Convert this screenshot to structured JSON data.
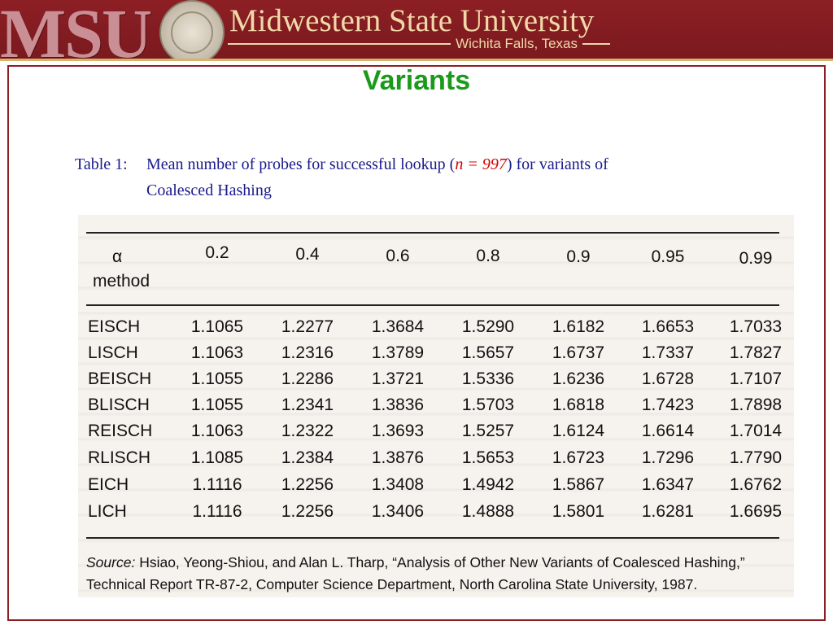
{
  "header": {
    "logo_text": "MSU",
    "university": "Midwestern State University",
    "location": "Wichita Falls, Texas"
  },
  "slide": {
    "title": "Variants"
  },
  "caption": {
    "lead": "Table 1:",
    "text_before": "Mean number of probes for successful lookup (",
    "n_value": "n = 997",
    "text_after": ") for variants of",
    "second_line": "Coalesced Hashing"
  },
  "table": {
    "alpha_label": "α",
    "method_label": "method",
    "columns": [
      "0.2",
      "0.4",
      "0.6",
      "0.8",
      "0.9",
      "0.95",
      "0.99"
    ],
    "rows": [
      {
        "name": "EISCH",
        "values": [
          "1.1065",
          "1.2277",
          "1.3684",
          "1.5290",
          "1.6182",
          "1.6653",
          "1.7033"
        ]
      },
      {
        "name": "LISCH",
        "values": [
          "1.1063",
          "1.2316",
          "1.3789",
          "1.5657",
          "1.6737",
          "1.7337",
          "1.7827"
        ]
      },
      {
        "name": "BEISCH",
        "values": [
          "1.1055",
          "1.2286",
          "1.3721",
          "1.5336",
          "1.6236",
          "1.6728",
          "1.7107"
        ]
      },
      {
        "name": "BLISCH",
        "values": [
          "1.1055",
          "1.2341",
          "1.3836",
          "1.5703",
          "1.6818",
          "1.7423",
          "1.7898"
        ]
      },
      {
        "name": "REISCH",
        "values": [
          "1.1063",
          "1.2322",
          "1.3693",
          "1.5257",
          "1.6124",
          "1.6614",
          "1.7014"
        ]
      },
      {
        "name": "RLISCH",
        "values": [
          "1.1085",
          "1.2384",
          "1.3876",
          "1.5653",
          "1.6723",
          "1.7296",
          "1.7790"
        ]
      },
      {
        "name": "EICH",
        "values": [
          "1.1116",
          "1.2256",
          "1.3408",
          "1.4942",
          "1.5867",
          "1.6347",
          "1.6762"
        ]
      },
      {
        "name": "LICH",
        "values": [
          "1.1116",
          "1.2256",
          "1.3406",
          "1.4888",
          "1.5801",
          "1.6281",
          "1.6695"
        ]
      }
    ]
  },
  "source": {
    "label": "Source:",
    "text": "Hsiao, Yeong-Shiou, and Alan L. Tharp, “Analysis of Other New Variants of Coalesced Hashing,” Technical Report TR-87-2, Computer Science Department, North Carolina State University, 1987."
  },
  "colors": {
    "banner": "#8c1f24",
    "title": "#1a9a1a",
    "caption": "#1a1a8c",
    "n_value": "#d40000"
  }
}
